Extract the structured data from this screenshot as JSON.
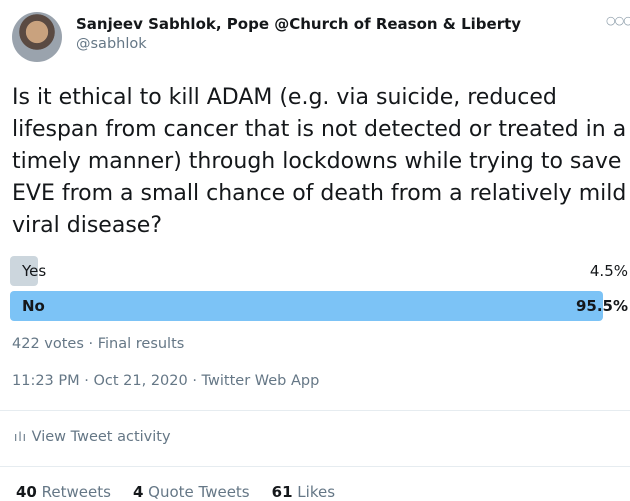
{
  "tweet": {
    "author": {
      "name": "Sanjeev Sabhlok, Pope @Church of Reason & Liberty",
      "handle": "@sabhlok"
    },
    "text_lines": [
      "Is it ethical to kill ADAM (e.g. via suicide, reduced",
      "lifespan from cancer that is not detected or treated in a",
      "timely manner) through lockdowns while trying to save",
      "EVE from a small chance of death from a relatively mild",
      "viral disease?"
    ],
    "poll": {
      "options": [
        {
          "label": "Yes",
          "value": 4.5,
          "value_label": "4.5%",
          "winner": false
        },
        {
          "label": "No",
          "value": 95.5,
          "value_label": "95.5%",
          "winner": true
        }
      ],
      "summary": "422 votes · Final results"
    },
    "timestamp": "11:23 PM · Oct 21, 2020 · Twitter Web App",
    "activity": "View Tweet activity",
    "stats": [
      {
        "count": 40,
        "label": "Retweets"
      },
      {
        "count": 4,
        "label": "Quote Tweets"
      },
      {
        "count": 61,
        "label": "Likes"
      }
    ]
  }
}
